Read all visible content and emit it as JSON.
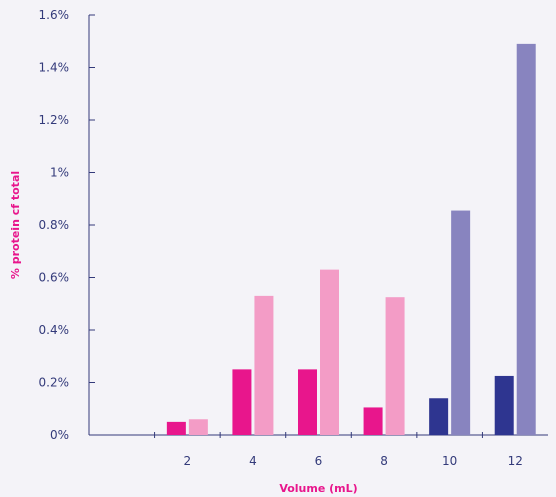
{
  "chart_data": {
    "type": "bar",
    "title": "",
    "xlabel": "Volume (mL)",
    "ylabel": "% protein cf total",
    "ylim": [
      0,
      1.6
    ],
    "yticks": [
      "0%",
      "0.2%",
      "0.4%",
      "0.6%",
      "0.8%",
      "1%",
      "1.2%",
      "1.4%",
      "1.6%"
    ],
    "categories": [
      "",
      "2",
      "4",
      "6",
      "8",
      "10",
      "12"
    ],
    "grid": false,
    "legend": "none",
    "series": [
      {
        "values": [
          null,
          0.05,
          0.25,
          0.25,
          0.105,
          0.14,
          0.225
        ]
      },
      {
        "values": [
          null,
          0.06,
          0.53,
          0.63,
          0.525,
          0.855,
          1.49
        ]
      }
    ],
    "bar_colors": [
      [
        null,
        "#e8168c",
        "#e8168c",
        "#e8168c",
        "#e8168c",
        "#2e3590",
        "#2e3590"
      ],
      [
        null,
        "#f39cc6",
        "#f39cc6",
        "#f39cc6",
        "#f39cc6",
        "#8884bf",
        "#8884bf"
      ]
    ],
    "colors": {
      "axis": "#333a7a",
      "tick_text": "#333a7a",
      "xlabel": "#e8168c",
      "ylabel": "#e8168c"
    }
  }
}
